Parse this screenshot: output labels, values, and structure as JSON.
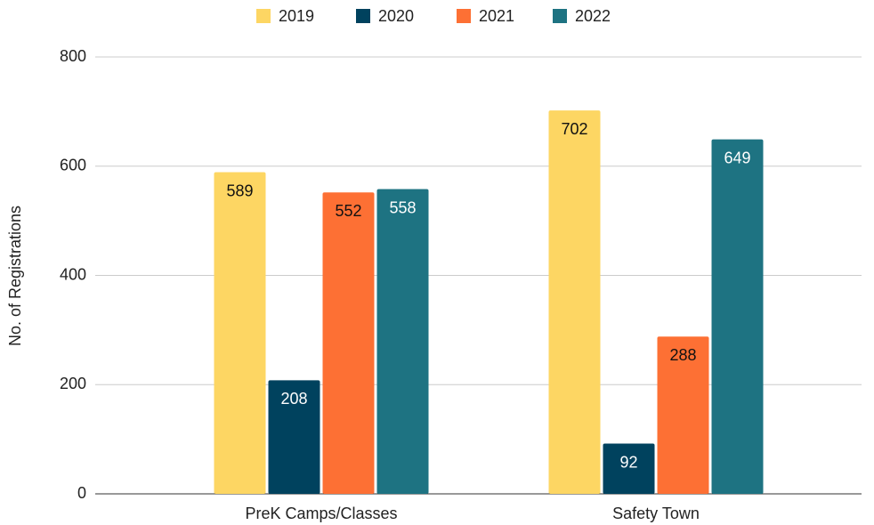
{
  "chart_data": {
    "type": "bar",
    "y_label": "No. of Registrations",
    "categories": [
      "PreK Camps/Classes",
      "Safety Town"
    ],
    "series": [
      {
        "name": "2019",
        "color": "#fdd663",
        "values": [
          589,
          702
        ]
      },
      {
        "name": "2020",
        "color": "#00425e",
        "values": [
          208,
          92
        ]
      },
      {
        "name": "2021",
        "color": "#fd7034",
        "values": [
          552,
          288
        ]
      },
      {
        "name": "2022",
        "color": "#1e7382",
        "values": [
          558,
          649
        ]
      }
    ],
    "ylim": [
      0,
      800
    ],
    "yticks": [
      0,
      200,
      400,
      600,
      800
    ],
    "grid": true,
    "legend": "top"
  }
}
